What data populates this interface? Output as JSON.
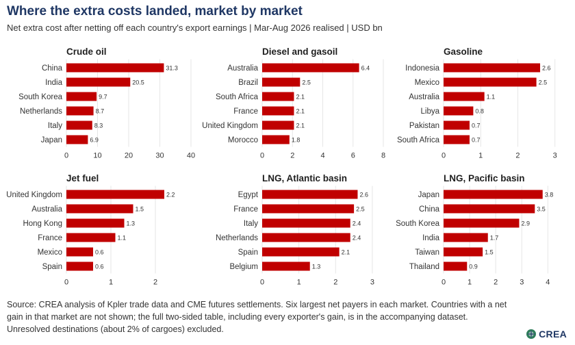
{
  "title": "Where the extra costs landed, market by market",
  "subtitle": "Net extra cost after netting off each country's export earnings | Mar-Aug 2026 realised | USD bn",
  "source": "Source: CREA analysis of Kpler trade data and CME futures settlements. Six largest net payers in each market. Countries with a net gain in that market are not shown; the full two-sided table, including every exporter's gain, is in the accompanying dataset. Unresolved destinations (about 2% of cargoes) excluded.",
  "logo_text": "CREA",
  "colors": {
    "bar": "#c00000",
    "grid": "#e6e6e6",
    "title": "#1f3764"
  },
  "chart_data": [
    {
      "type": "bar",
      "orientation": "horizontal",
      "title": "Crude oil",
      "categories": [
        "China",
        "India",
        "South Korea",
        "Netherlands",
        "Italy",
        "Japan"
      ],
      "values": [
        31.3,
        20.5,
        9.7,
        8.7,
        8.3,
        6.9
      ],
      "value_labels": [
        "31.3",
        "20.5",
        "9.7",
        "8.7",
        "8.3",
        "6.9"
      ],
      "xlim": [
        0,
        40
      ],
      "xticks": [
        0,
        10,
        20,
        30,
        40
      ],
      "grid": true
    },
    {
      "type": "bar",
      "orientation": "horizontal",
      "title": "Diesel and gasoil",
      "categories": [
        "Australia",
        "Brazil",
        "South Africa",
        "France",
        "United Kingdom",
        "Morocco"
      ],
      "values": [
        6.4,
        2.5,
        2.1,
        2.1,
        2.1,
        1.8
      ],
      "value_labels": [
        "6.4",
        "2.5",
        "2.1",
        "2.1",
        "2.1",
        "1.8"
      ],
      "xlim": [
        0,
        8
      ],
      "xticks": [
        0,
        2,
        4,
        6,
        8
      ],
      "grid": true
    },
    {
      "type": "bar",
      "orientation": "horizontal",
      "title": "Gasoline",
      "categories": [
        "Indonesia",
        "Mexico",
        "Australia",
        "Libya",
        "Pakistan",
        "South Africa"
      ],
      "values": [
        2.6,
        2.5,
        1.1,
        0.8,
        0.7,
        0.7
      ],
      "value_labels": [
        "2.6",
        "2.5",
        "1.1",
        "0.8",
        "0.7",
        "0.7"
      ],
      "xlim": [
        0,
        3.3
      ],
      "xticks": [
        0,
        1,
        2,
        3
      ],
      "grid": true
    },
    {
      "type": "bar",
      "orientation": "horizontal",
      "title": "Jet fuel",
      "categories": [
        "United Kingdom",
        "Australia",
        "Hong Kong",
        "France",
        "Mexico",
        "Spain"
      ],
      "values": [
        2.2,
        1.5,
        1.3,
        1.1,
        0.6,
        0.6
      ],
      "value_labels": [
        "2.2",
        "1.5",
        "1.3",
        "1.1",
        "0.6",
        "0.6"
      ],
      "xlim": [
        0,
        2.8
      ],
      "xticks": [
        0,
        1,
        2
      ],
      "grid": true
    },
    {
      "type": "bar",
      "orientation": "horizontal",
      "title": "LNG, Atlantic basin",
      "categories": [
        "Egypt",
        "France",
        "Italy",
        "Netherlands",
        "Spain",
        "Belgium"
      ],
      "values": [
        2.6,
        2.5,
        2.4,
        2.4,
        2.1,
        1.3
      ],
      "value_labels": [
        "2.6",
        "2.5",
        "2.4",
        "2.4",
        "2.1",
        "1.3"
      ],
      "xlim": [
        0,
        3.3
      ],
      "xticks": [
        0,
        1,
        2,
        3
      ],
      "grid": true
    },
    {
      "type": "bar",
      "orientation": "horizontal",
      "title": "LNG, Pacific basin",
      "categories": [
        "Japan",
        "China",
        "South Korea",
        "India",
        "Taiwan",
        "Thailand"
      ],
      "values": [
        3.8,
        3.5,
        2.9,
        1.7,
        1.5,
        0.9
      ],
      "value_labels": [
        "3.8",
        "3.5",
        "2.9",
        "1.7",
        "1.5",
        "0.9"
      ],
      "xlim": [
        0,
        4.7
      ],
      "xticks": [
        0,
        1,
        2,
        3,
        4
      ],
      "grid": true
    }
  ]
}
